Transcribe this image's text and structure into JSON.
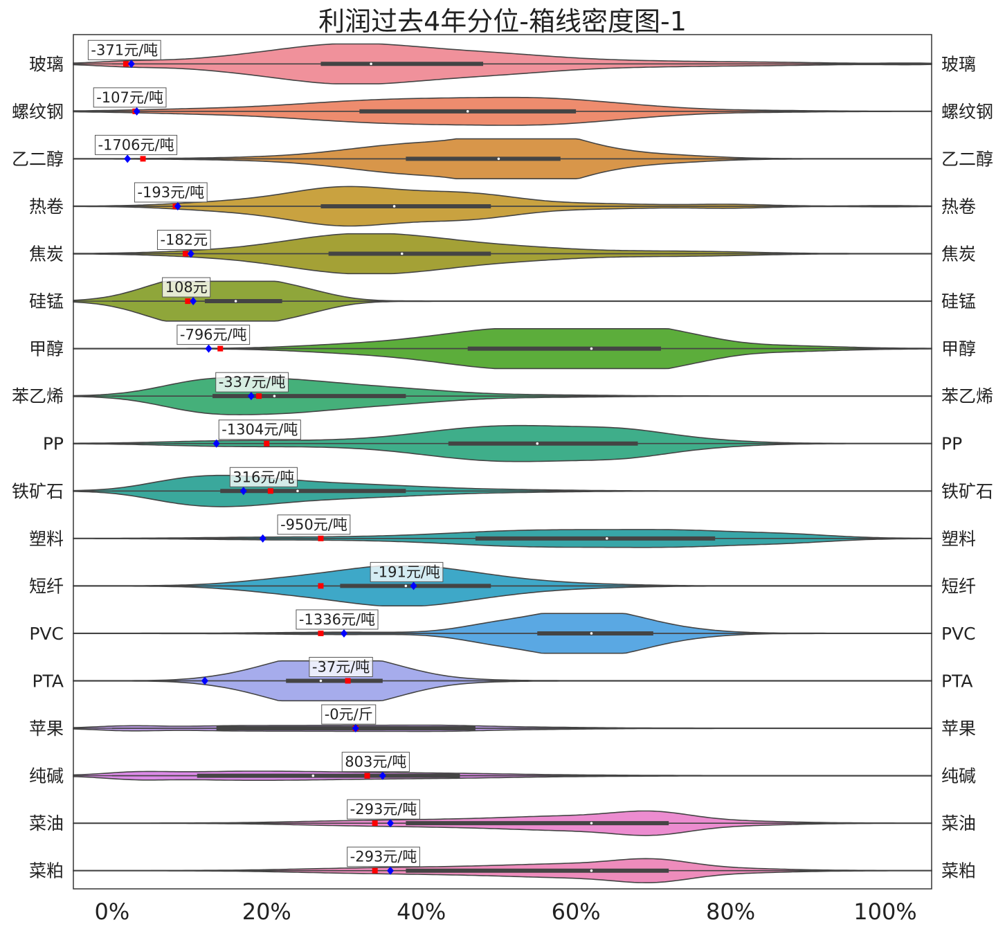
{
  "chart_data": {
    "type": "violin",
    "title": "利润过去4年分位-箱线密度图-1",
    "x_ticks": [
      "0%",
      "20%",
      "40%",
      "60%",
      "80%",
      "100%"
    ],
    "x_tick_values": [
      0,
      20,
      40,
      60,
      80,
      100
    ],
    "xlim": [
      -5,
      106
    ],
    "xlabel": "",
    "ylabel": "",
    "grid": false,
    "markers": {
      "current": {
        "color": "#0000ff",
        "shape": "diamond"
      },
      "reference": {
        "color": "#ff0000",
        "shape": "square"
      }
    },
    "series": [
      {
        "name": "玻璃",
        "color": "#f0919b",
        "current": 2.5,
        "reference": 1.8,
        "label": "-371元/吨",
        "min": 0,
        "max": 106,
        "q1": 27,
        "median": 33.5,
        "q3": 48,
        "peaks": [
          [
            2,
            0.08,
            4
          ],
          [
            20,
            0.35,
            10
          ],
          [
            30,
            0.55,
            8
          ],
          [
            40,
            0.45,
            9
          ],
          [
            52,
            0.28,
            8
          ],
          [
            68,
            0.12,
            9
          ],
          [
            85,
            0.06,
            8
          ],
          [
            103,
            0.03,
            3
          ]
        ]
      },
      {
        "name": "螺纹钢",
        "color": "#ee8c6e",
        "current": 3.2,
        "reference": 3.0,
        "label": "-107元/吨",
        "min": 0,
        "max": 95,
        "q1": 32,
        "median": 46,
        "q3": 60,
        "peaks": [
          [
            10,
            0.08,
            8
          ],
          [
            30,
            0.35,
            10
          ],
          [
            45,
            0.45,
            10
          ],
          [
            58,
            0.4,
            8
          ],
          [
            70,
            0.12,
            7
          ],
          [
            85,
            0.03,
            6
          ]
        ]
      },
      {
        "name": "乙二醇",
        "color": "#d8964a",
        "current": 2.0,
        "reference": 4.0,
        "label": "-1706元/吨",
        "min": 0,
        "max": 85,
        "q1": 38,
        "median": 50,
        "q3": 58,
        "peaks": [
          [
            20,
            0.05,
            8
          ],
          [
            35,
            0.4,
            8
          ],
          [
            45,
            0.55,
            8
          ],
          [
            53,
            0.95,
            5
          ],
          [
            60,
            0.55,
            6
          ],
          [
            72,
            0.15,
            6
          ]
        ]
      },
      {
        "name": "热卷",
        "color": "#c9a240",
        "current": 8.5,
        "reference": 8.2,
        "label": "-193元/吨",
        "min": 0,
        "max": 106,
        "q1": 27,
        "median": 36.5,
        "q3": 49,
        "peaks": [
          [
            10,
            0.05,
            5
          ],
          [
            22,
            0.35,
            8
          ],
          [
            30,
            0.6,
            6
          ],
          [
            40,
            0.45,
            7
          ],
          [
            48,
            0.35,
            6
          ],
          [
            62,
            0.12,
            8
          ],
          [
            80,
            0.08,
            5
          ],
          [
            100,
            0.02,
            4
          ]
        ]
      },
      {
        "name": "焦炭",
        "color": "#a4a136",
        "current": 10.2,
        "reference": 9.5,
        "label": "-182元",
        "min": 0,
        "max": 106,
        "q1": 28,
        "median": 37.5,
        "q3": 49,
        "peaks": [
          [
            10,
            0.05,
            6
          ],
          [
            25,
            0.35,
            9
          ],
          [
            32,
            0.55,
            8
          ],
          [
            42,
            0.45,
            8
          ],
          [
            55,
            0.2,
            7
          ],
          [
            70,
            0.1,
            7
          ],
          [
            80,
            0.05,
            6
          ]
        ]
      },
      {
        "name": "硅锰",
        "color": "#8fa63a",
        "current": 10.5,
        "reference": 9.8,
        "label": "108元",
        "min": 0,
        "max": 40,
        "q1": 12,
        "median": 16,
        "q3": 22,
        "peaks": [
          [
            7,
            0.6,
            5
          ],
          [
            13,
            0.8,
            5
          ],
          [
            20,
            0.7,
            5
          ],
          [
            26,
            0.2,
            4
          ]
        ]
      },
      {
        "name": "甲醇",
        "color": "#5cad3b",
        "current": 12.5,
        "reference": 14,
        "label": "-796元/吨",
        "min": 0,
        "max": 106,
        "q1": 46,
        "median": 62,
        "q3": 71,
        "peaks": [
          [
            30,
            0.15,
            7
          ],
          [
            45,
            0.55,
            8
          ],
          [
            55,
            0.7,
            7
          ],
          [
            66,
            0.92,
            5
          ],
          [
            74,
            0.5,
            5
          ],
          [
            85,
            0.15,
            8
          ]
        ]
      },
      {
        "name": "苯乙烯",
        "color": "#45b07a",
        "current": 18,
        "reference": 19,
        "label": "-337元/吨",
        "min": 0,
        "max": 106,
        "q1": 13,
        "median": 21,
        "q3": 38,
        "peaks": [
          [
            12,
            0.7,
            6
          ],
          [
            22,
            0.55,
            6
          ],
          [
            32,
            0.4,
            7
          ],
          [
            42,
            0.12,
            6
          ],
          [
            55,
            0.05,
            8
          ]
        ]
      },
      {
        "name": "PP",
        "color": "#3fae8a",
        "current": 13.5,
        "reference": 20,
        "label": "-1304元/吨",
        "min": 8,
        "max": 95,
        "q1": 43.5,
        "median": 55,
        "q3": 68,
        "peaks": [
          [
            15,
            0.12,
            8
          ],
          [
            30,
            0.1,
            8
          ],
          [
            45,
            0.5,
            8
          ],
          [
            56,
            0.6,
            8
          ],
          [
            67,
            0.45,
            6
          ],
          [
            77,
            0.12,
            6
          ]
        ]
      },
      {
        "name": "铁矿石",
        "color": "#3aa89c",
        "current": 17,
        "reference": 20.5,
        "label": "316元/吨",
        "min": 0,
        "max": 106,
        "q1": 14,
        "median": 24,
        "q3": 38,
        "peaks": [
          [
            8,
            0.3,
            5
          ],
          [
            15,
            0.5,
            6
          ],
          [
            25,
            0.35,
            8
          ],
          [
            38,
            0.15,
            7
          ],
          [
            52,
            0.05,
            7
          ]
        ]
      },
      {
        "name": "塑料",
        "color": "#38a6a8",
        "current": 19.5,
        "reference": 27,
        "label": "-950元/吨",
        "min": 0,
        "max": 106,
        "q1": 47,
        "median": 64,
        "q3": 78,
        "peaks": [
          [
            20,
            0.05,
            8
          ],
          [
            35,
            0.05,
            8
          ],
          [
            50,
            0.25,
            9
          ],
          [
            62,
            0.25,
            9
          ],
          [
            75,
            0.3,
            8
          ],
          [
            88,
            0.15,
            6
          ]
        ]
      },
      {
        "name": "短纤",
        "color": "#3ea8c8",
        "current": 39,
        "reference": 27,
        "label": "-191元/吨",
        "min": 5,
        "max": 80,
        "q1": 29.5,
        "median": 38,
        "q3": 49,
        "peaks": [
          [
            20,
            0.15,
            6
          ],
          [
            30,
            0.5,
            7
          ],
          [
            38,
            0.6,
            6
          ],
          [
            46,
            0.4,
            6
          ],
          [
            55,
            0.15,
            6
          ],
          [
            65,
            0.04,
            5
          ]
        ]
      },
      {
        "name": "PVC",
        "color": "#5aa8e3",
        "current": 30,
        "reference": 27,
        "label": "-1336元/吨",
        "min": 10,
        "max": 106,
        "q1": 55,
        "median": 62,
        "q3": 70,
        "peaks": [
          [
            30,
            0.05,
            8
          ],
          [
            50,
            0.45,
            5
          ],
          [
            59,
            0.85,
            5
          ],
          [
            66,
            0.65,
            5
          ],
          [
            74,
            0.15,
            5
          ]
        ]
      },
      {
        "name": "PTA",
        "color": "#a6acec",
        "current": 12,
        "reference": 30.5,
        "label": "-37元/吨",
        "min": 5,
        "max": 70,
        "q1": 22.5,
        "median": 27,
        "q3": 35,
        "peaks": [
          [
            14,
            0.1,
            4
          ],
          [
            22,
            0.65,
            5
          ],
          [
            29,
            0.95,
            5
          ],
          [
            36,
            0.5,
            5
          ],
          [
            45,
            0.05,
            5
          ]
        ]
      },
      {
        "name": "苹果",
        "color": "#bc9ae6",
        "current": 31.5,
        "reference": 31.5,
        "label": "-0元/斤",
        "min": 0,
        "max": 106,
        "q1": 13.5,
        "median": 31.5,
        "q3": 47,
        "peaks": [
          [
            2,
            0.1,
            4
          ],
          [
            15,
            0.1,
            7
          ],
          [
            30,
            0.12,
            8
          ],
          [
            43,
            0.1,
            6
          ],
          [
            55,
            0.04,
            7
          ]
        ]
      },
      {
        "name": "纯碱",
        "color": "#dc8be8",
        "current": 35,
        "reference": 33,
        "label": "803元/吨",
        "min": 0,
        "max": 106,
        "q1": 11,
        "median": 26,
        "q3": 45,
        "peaks": [
          [
            3,
            0.12,
            4
          ],
          [
            15,
            0.18,
            9
          ],
          [
            30,
            0.12,
            9
          ],
          [
            45,
            0.08,
            8
          ],
          [
            60,
            0.02,
            8
          ]
        ]
      },
      {
        "name": "菜油",
        "color": "#ec8cd0",
        "current": 36,
        "reference": 34,
        "label": "-293元/吨",
        "min": 5,
        "max": 106,
        "q1": 38,
        "median": 62,
        "q3": 72,
        "peaks": [
          [
            30,
            0.08,
            8
          ],
          [
            45,
            0.15,
            9
          ],
          [
            60,
            0.3,
            8
          ],
          [
            70,
            0.42,
            5
          ],
          [
            80,
            0.1,
            7
          ]
        ]
      },
      {
        "name": "菜粕",
        "color": "#ee8cbc",
        "current": 36,
        "reference": 34,
        "label": "-293元/吨",
        "min": 5,
        "max": 106,
        "q1": 38,
        "median": 62,
        "q3": 72,
        "peaks": [
          [
            30,
            0.08,
            8
          ],
          [
            45,
            0.15,
            9
          ],
          [
            60,
            0.28,
            8
          ],
          [
            70,
            0.42,
            5
          ],
          [
            80,
            0.1,
            7
          ]
        ]
      }
    ]
  }
}
